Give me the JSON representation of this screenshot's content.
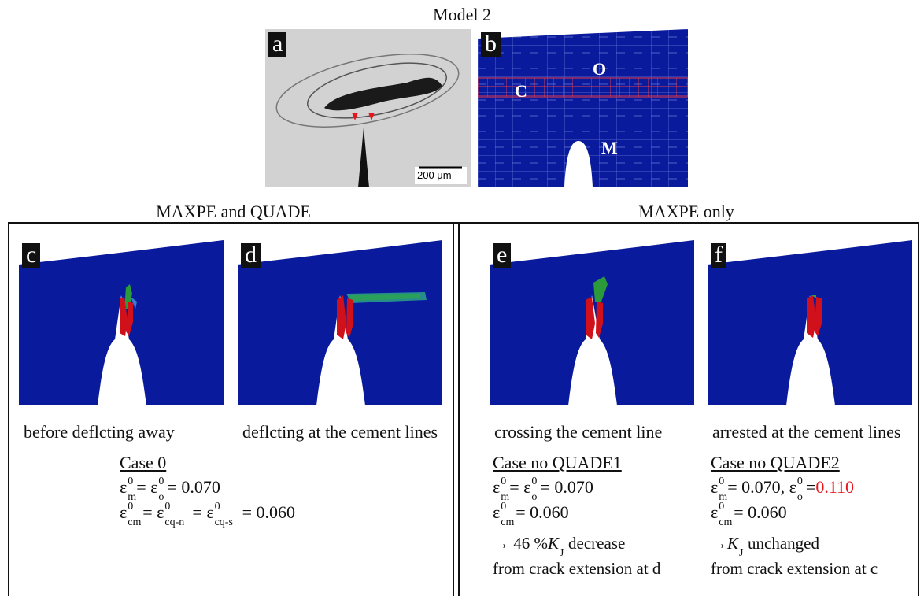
{
  "title": "Model 2",
  "panel_a": {
    "label": "a",
    "scale_bar": "200 μm"
  },
  "panel_b": {
    "label": "b",
    "regions": [
      "O",
      "C",
      "M"
    ]
  },
  "groups": [
    {
      "title": "MAXPE and QUADE",
      "panels": [
        {
          "label": "c",
          "caption": "before deflcting away"
        },
        {
          "label": "d",
          "caption": "deflcting at the cement lines"
        }
      ],
      "cases": [
        {
          "name": "Case 0",
          "lines": [
            [
              {
                "t": "ε",
                "sup": "0",
                "sub": "m"
              },
              {
                "t": " = ε"
              },
              {
                "t": "",
                "sup": "0",
                "sub": "o"
              },
              {
                "t": " = 0.070"
              }
            ],
            [
              {
                "t": "ε",
                "sup": "0",
                "sub": "cm"
              },
              {
                "t": " = ε"
              },
              {
                "t": "",
                "sup": "0",
                "sub": "cq-n"
              },
              {
                "t": " = ε"
              },
              {
                "t": "",
                "sup": "0",
                "sub": "cq-s"
              },
              {
                "t": " = 0.060"
              }
            ]
          ],
          "notes": []
        }
      ]
    },
    {
      "title": "MAXPE only",
      "panels": [
        {
          "label": "e",
          "caption": "crossing the cement line"
        },
        {
          "label": "f",
          "caption": "arrested at the cement lines"
        }
      ],
      "cases": [
        {
          "name": "Case no QUADE1",
          "lines": [
            [
              {
                "t": "ε",
                "sup": "0",
                "sub": "m"
              },
              {
                "t": " = ε"
              },
              {
                "t": "",
                "sup": "0",
                "sub": "o"
              },
              {
                "t": " = 0.070"
              }
            ],
            [
              {
                "t": "ε",
                "sup": "0",
                "sub": "cm"
              },
              {
                "t": " = 0.060"
              }
            ]
          ],
          "notes": [
            [
              {
                "t": "→ 46 % "
              },
              {
                "t": "K",
                "sub": "J",
                "italic": true
              },
              {
                "t": " decrease"
              }
            ],
            [
              {
                "t": "from crack extension at d"
              }
            ]
          ]
        },
        {
          "name": "Case no QUADE2",
          "lines": [
            [
              {
                "t": "ε",
                "sup": "0",
                "sub": "m"
              },
              {
                "t": " = 0.070, ε"
              },
              {
                "t": "",
                "sup": "0",
                "sub": "o"
              },
              {
                "t": " = "
              },
              {
                "t": "0.110",
                "color": "#e8141c"
              }
            ],
            [
              {
                "t": "ε",
                "sup": "0",
                "sub": "cm"
              },
              {
                "t": " = 0.060"
              }
            ]
          ],
          "notes": [
            [
              {
                "t": "→ "
              },
              {
                "t": "K",
                "sub": "J",
                "italic": true
              },
              {
                "t": " unchanged"
              }
            ],
            [
              {
                "t": "from crack extension at c"
              }
            ]
          ]
        }
      ]
    }
  ]
}
